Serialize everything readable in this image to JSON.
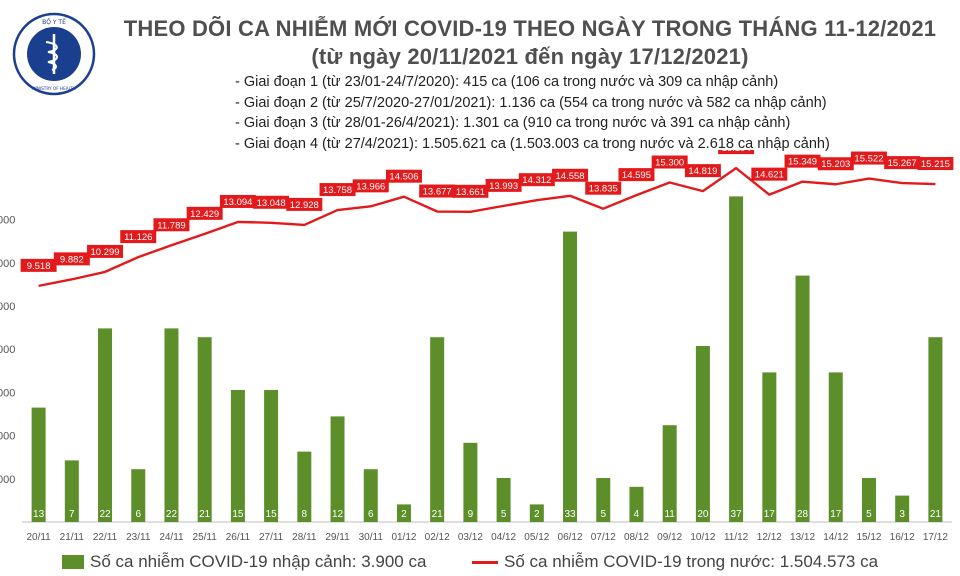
{
  "header": {
    "title": "THEO DÕI CA NHIỄM MỚI COVID-19 THEO NGÀY TRONG THÁNG 11-12/2021",
    "subtitle": "(từ ngày 20/11/2021 đến ngày 17/12/2021)",
    "logo_text_top": "BỘ Y TẾ",
    "logo_text_bottom": "MINISTRY OF HEALTH"
  },
  "notes": [
    "- Giai đoạn 1 (từ 23/01-24/7/2020): 415 ca (106 ca trong nước và 309 ca nhập cảnh)",
    "- Giai đoạn 2 (từ 25/7/2020-27/01/2021): 1.136 ca (554 ca trong nước và 582 ca nhập cảnh)",
    "- Giai đoạn 3 (từ 28/01-26/4/2021): 1.301 ca (910 ca trong nước và 391 ca nhập cảnh)",
    "- Giai đoạn 4 (từ 27/4/2021): 1.505.621 ca (1.503.003 ca trong nước và 2.618 ca nhập cảnh)"
  ],
  "legend": {
    "bar_label": "Số ca nhiễm COVID-19 nhập cảnh: 3.900 ca",
    "line_label": "Số ca nhiễm COVID-19 trong nước: 1.504.573 ca"
  },
  "colors": {
    "bar": "#5c8f2a",
    "line": "#e31a1c",
    "line_label_bg": "#e31a1c",
    "axis": "#bfbfbf"
  },
  "chart_data": {
    "type": "bar+line",
    "categories": [
      "20/11",
      "21/11",
      "22/11",
      "23/11",
      "24/11",
      "25/11",
      "26/11",
      "27/11",
      "28/11",
      "29/11",
      "30/11",
      "01/12",
      "02/12",
      "03/12",
      "04/12",
      "05/12",
      "06/12",
      "07/12",
      "08/12",
      "09/12",
      "10/12",
      "11/12",
      "12/12",
      "13/12",
      "14/12",
      "15/12",
      "16/12",
      "17/12"
    ],
    "series": [
      {
        "name": "Số ca nhiễm COVID-19 nhập cảnh: 3.900 ca",
        "type": "bar",
        "axis": "secondary",
        "values": [
          13,
          7,
          22,
          6,
          22,
          21,
          15,
          15,
          8,
          12,
          6,
          2,
          21,
          9,
          5,
          2,
          33,
          5,
          4,
          11,
          20,
          37,
          17,
          28,
          17,
          5,
          3,
          21
        ]
      },
      {
        "name": "Số ca nhiễm COVID-19 trong nước: 1.504.573 ca",
        "type": "line",
        "axis": "primary",
        "values": [
          9518,
          9882,
          10299,
          11126,
          11789,
          12429,
          13094,
          13048,
          12928,
          13758,
          13966,
          14506,
          13677,
          13661,
          13993,
          14312,
          14558,
          13835,
          14595,
          15300,
          14819,
          16104,
          14621,
          15349,
          15203,
          15522,
          15267,
          15215
        ],
        "labels": [
          "9.518",
          "9.882",
          "10.299",
          "11.126",
          "11.789",
          "12.429",
          "13.094",
          "13.048",
          "12.928",
          "13.758",
          "13.966",
          "14.506",
          "13.677",
          "13.661",
          "13.993",
          "14.312",
          "14.558",
          "13.835",
          "14.595",
          "15.300",
          "14.819",
          "16.104",
          "14.621",
          "15.349",
          "15.203",
          "15.522",
          "15.267",
          "15.215"
        ]
      }
    ],
    "bar_ylim": [
      0,
      40
    ],
    "line_ylim": [
      0,
      16000
    ],
    "line_ylim_view": [
      8000,
      16000
    ],
    "ytick_labels": [
      ".000",
      ".000",
      ".000",
      ".000",
      ".000",
      ".000",
      ".000",
      ".000"
    ],
    "grid": false
  }
}
